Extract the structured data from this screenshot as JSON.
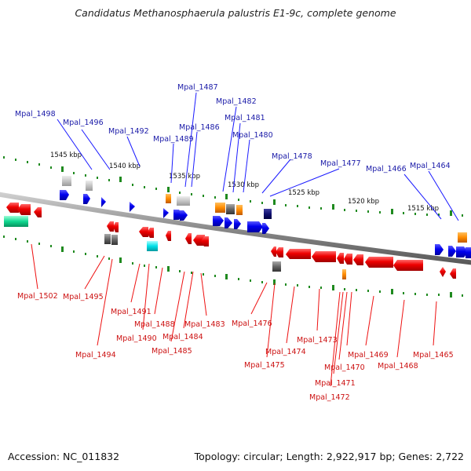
{
  "title": "Candidatus Methanosphaerula palustris E1-9c, complete genome",
  "footer": {
    "accession": "Accession: NC_011832",
    "topology": "Topology: circular; Length: 2,922,917 bp; Genes: 2,722"
  },
  "scale_labels": [
    "1545 kbp",
    "1540 kbp",
    "1535 kbp",
    "1530 kbp",
    "1525 kbp",
    "1520 kbp",
    "1515 kbp"
  ],
  "top_gene_labels": [
    "Mpal_1498",
    "Mpal_1496",
    "Mpal_1492",
    "Mpal_1489",
    "Mpal_1487",
    "Mpal_1486",
    "Mpal_1482",
    "Mpal_1481",
    "Mpal_1480",
    "Mpal_1478",
    "Mpal_1477",
    "Mpal_1466",
    "Mpal_1464"
  ],
  "bottom_gene_labels": [
    "Mpal_1502",
    "Mpal_1495",
    "Mpal_1494",
    "Mpal_1491",
    "Mpal_1490",
    "Mpal_1488",
    "Mpal_1485",
    "Mpal_1484",
    "Mpal_1483",
    "Mpal_1476",
    "Mpal_1475",
    "Mpal_1474",
    "Mpal_1473",
    "Mpal_1472",
    "Mpal_1471",
    "Mpal_1470",
    "Mpal_1469",
    "Mpal_1468",
    "Mpal_1465"
  ],
  "colors": {
    "forward_gene": "#0000ee",
    "reverse_gene": "#ee0000",
    "rna_gene": "#ff8800",
    "pseudo_gene": "#777777",
    "backbone": "#888888",
    "tick": "#1f8a1f"
  }
}
